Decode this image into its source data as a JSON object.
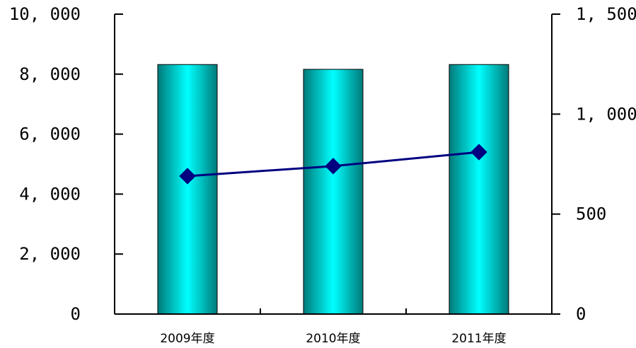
{
  "chart_data": {
    "type": "bar+line",
    "categories": [
      "2009年度",
      "2010年度",
      "2011年度"
    ],
    "series": [
      {
        "type": "bar",
        "axis": "left",
        "values": [
          8320,
          8160,
          8320
        ]
      },
      {
        "type": "line",
        "axis": "right",
        "values": [
          690,
          740,
          810
        ]
      }
    ],
    "y_left": {
      "ylim": [
        0,
        10000
      ],
      "ticks": [
        0,
        2000,
        4000,
        6000,
        8000,
        10000
      ],
      "tick_labels": [
        "0",
        "2, 000",
        "4, 000",
        "6, 000",
        "8, 000",
        "10, 000"
      ]
    },
    "y_right": {
      "ylim": [
        0,
        1500
      ],
      "ticks": [
        0,
        500,
        1000,
        1500
      ],
      "tick_labels": [
        "0",
        "500",
        "1, 000",
        "1, 500"
      ]
    },
    "grid": false,
    "legend": "none",
    "colors": {
      "bar_light": "#00ffff",
      "bar_dark": "#007a7a",
      "line": "#000080",
      "marker": "#000080",
      "axis": "#000000"
    }
  }
}
